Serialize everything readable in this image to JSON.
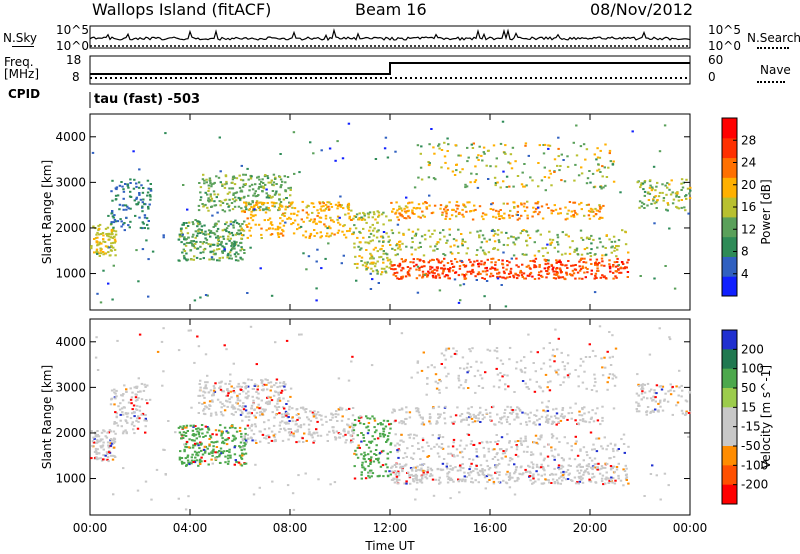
{
  "header": {
    "station": "Wallops Island (fitACF)",
    "beam": "Beam 16",
    "date": "08/Nov/2012"
  },
  "panel_labels": {
    "nsky": "N.Sky",
    "nsearch": "N.Search",
    "freq_top": "Freq.",
    "freq_unit": "[MHz]",
    "nave": "Nave",
    "cpid": "CPID",
    "cpid_value": "tau (fast) -503",
    "n_tick_hi": "10^5",
    "n_tick_lo": "10^0",
    "freq_tick_hi": "18",
    "freq_tick_lo": "8",
    "nave_tick_hi": "60",
    "nave_tick_lo": "0"
  },
  "colors": {
    "power_scale": [
      "#1020ff",
      "#3060c0",
      "#2e8b57",
      "#5aa05a",
      "#b8c030",
      "#ffb000",
      "#ff7000",
      "#ff3000",
      "#ff0000"
    ],
    "velocity_scale": [
      "#2030d0",
      "#207850",
      "#4ca84c",
      "#9ccc4c",
      "#c8c8c8",
      "#c8c8c8",
      "#ff8c00",
      "#ff5000",
      "#ff0000"
    ]
  },
  "chart_data": [
    {
      "type": "heatmap",
      "title": "Power",
      "ylabel": "Slant Range [km]",
      "xlabel": "",
      "ylim": [
        200,
        4500
      ],
      "y_ticks": [
        1000,
        2000,
        3000,
        4000
      ],
      "x_ticks": [
        "00:00",
        "04:00",
        "08:00",
        "12:00",
        "16:00",
        "20:00",
        "00:00"
      ],
      "colorbar": {
        "label": "Power [dB]",
        "min": 0,
        "max": 32,
        "ticks": [
          4,
          8,
          12,
          16,
          20,
          24,
          28
        ]
      }
    },
    {
      "type": "heatmap",
      "title": "Velocity",
      "ylabel": "Slant Range [km]",
      "xlabel": "Time UT",
      "ylim": [
        200,
        4500
      ],
      "y_ticks": [
        1000,
        2000,
        3000,
        4000
      ],
      "x_ticks": [
        "00:00",
        "04:00",
        "08:00",
        "12:00",
        "16:00",
        "20:00",
        "00:00"
      ],
      "colorbar": {
        "label": "Velocity [m s^-1]",
        "ticks": [
          200,
          100,
          50,
          15,
          -15,
          -50,
          -100,
          -200
        ]
      }
    }
  ]
}
